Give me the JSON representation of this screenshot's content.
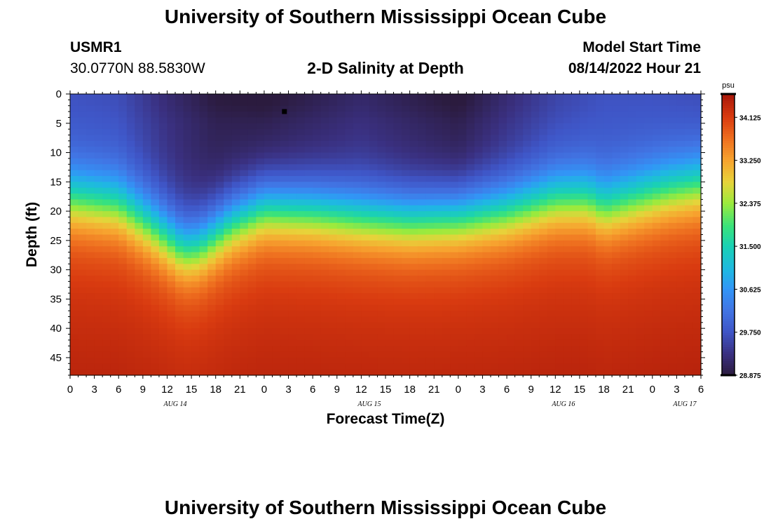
{
  "page": {
    "title_top": "University of Southern Mississippi Ocean Cube",
    "title_bottom": "University of Southern Mississippi Ocean Cube",
    "station_id": "USMR1",
    "coordinates": "30.0770N  88.5830W",
    "subtitle": "2-D Salinity at Depth",
    "model_start_label": "Model Start Time",
    "model_start_value": "08/14/2022 Hour 21"
  },
  "chart_data": {
    "type": "heatmap",
    "title": "2-D Salinity at Depth",
    "xlabel": "Forecast Time(Z)",
    "ylabel": "Depth (ft)",
    "x_ticks": [
      "0",
      "3",
      "6",
      "9",
      "12",
      "15",
      "18",
      "21",
      "0",
      "3",
      "6",
      "9",
      "12",
      "15",
      "18",
      "21",
      "0",
      "3",
      "6",
      "9",
      "12",
      "15",
      "18",
      "21",
      "0",
      "3",
      "6"
    ],
    "x_date_labels": [
      {
        "label": "AUG 14",
        "hours_from_start": 13
      },
      {
        "label": "AUG 15",
        "hours_from_start": 37
      },
      {
        "label": "AUG 16",
        "hours_from_start": 61
      },
      {
        "label": "AUG 17",
        "hours_from_start": 76
      }
    ],
    "x_range_hours": [
      0,
      78
    ],
    "y_ticks": [
      0,
      5,
      10,
      15,
      20,
      25,
      30,
      35,
      40,
      45
    ],
    "y_range": [
      0,
      48
    ],
    "colorbar": {
      "unit": "psu",
      "min": 28.875,
      "max": 34.6,
      "tick_labels": [
        "34.125",
        "33.250",
        "32.375",
        "31.500",
        "30.625",
        "29.750",
        "28.875"
      ],
      "tick_values": [
        34.125,
        33.25,
        32.375,
        31.5,
        30.625,
        29.75,
        28.875
      ]
    },
    "colormap_stops": [
      {
        "v": 28.875,
        "c": "#2b1b3e"
      },
      {
        "v": 29.3,
        "c": "#3a3080"
      },
      {
        "v": 29.75,
        "c": "#3f55c6"
      },
      {
        "v": 30.2,
        "c": "#4175e4"
      },
      {
        "v": 30.625,
        "c": "#3295f6"
      },
      {
        "v": 31.0,
        "c": "#1fb7e3"
      },
      {
        "v": 31.5,
        "c": "#1ad1b4"
      },
      {
        "v": 31.9,
        "c": "#39e27c"
      },
      {
        "v": 32.375,
        "c": "#9bea3d"
      },
      {
        "v": 32.8,
        "c": "#e7d33a"
      },
      {
        "v": 33.25,
        "c": "#f7a32f"
      },
      {
        "v": 33.7,
        "c": "#ee6e1f"
      },
      {
        "v": 34.125,
        "c": "#d93b10"
      },
      {
        "v": 34.6,
        "c": "#a7170a"
      }
    ],
    "halocline": {
      "hours": [
        0,
        6,
        10,
        14,
        16,
        20,
        24,
        30,
        36,
        42,
        48,
        54,
        60,
        64,
        66,
        70,
        74,
        78
      ],
      "depth_ft": [
        18,
        19,
        22.5,
        26.5,
        26,
        22,
        19.5,
        20,
        21,
        21.5,
        21,
        20,
        18,
        18,
        19.5,
        18,
        16.5,
        15.5
      ]
    },
    "surface_salinity": {
      "hours": [
        0,
        6,
        12,
        18,
        24,
        30,
        36,
        42,
        48,
        54,
        60,
        66,
        72,
        78
      ],
      "psu": [
        29.75,
        29.7,
        29.3,
        29.0,
        28.95,
        29.1,
        29.25,
        29.1,
        28.95,
        29.3,
        29.6,
        29.75,
        29.75,
        29.7
      ]
    },
    "deep_salinity_psu": 34.2,
    "marker": {
      "hours_from_start": 26.5,
      "depth_ft": 3
    }
  }
}
